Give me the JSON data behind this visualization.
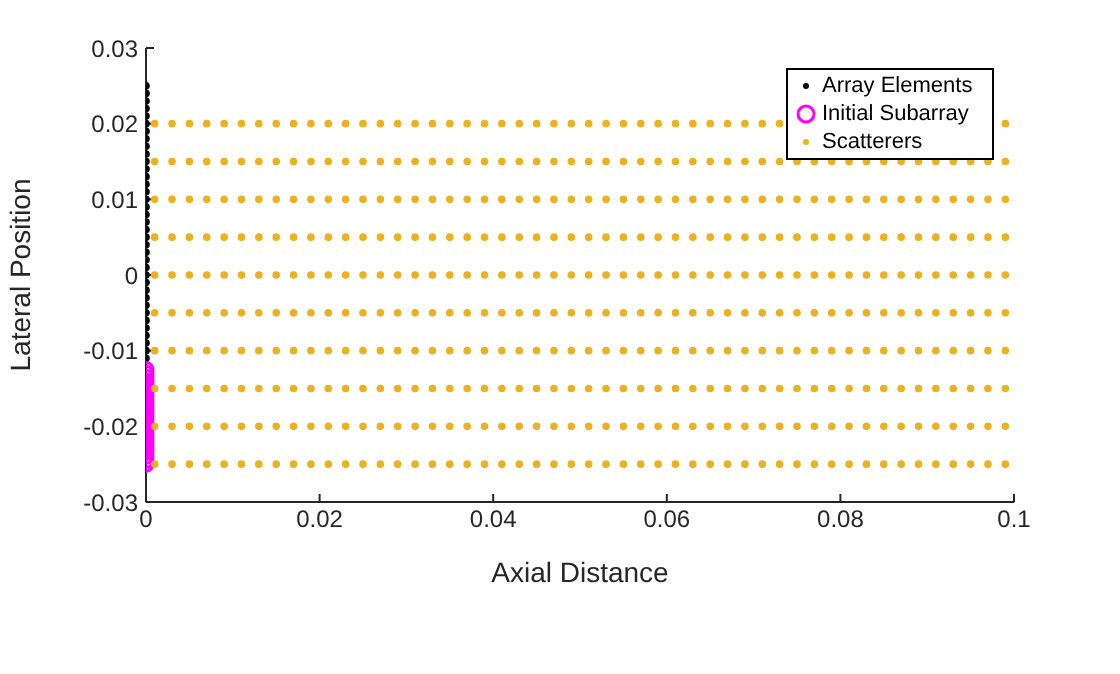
{
  "chart_data": {
    "type": "scatter",
    "xlabel": "Axial Distance",
    "ylabel": "Lateral Position",
    "xlim": [
      0,
      0.1
    ],
    "ylim": [
      -0.03,
      0.03
    ],
    "xticks": [
      0,
      0.02,
      0.04,
      0.06,
      0.08,
      0.1
    ],
    "yticks": [
      -0.03,
      -0.02,
      -0.01,
      0,
      0.01,
      0.02,
      0.03
    ],
    "grid": false,
    "legend": "top right",
    "marker": "circle",
    "series": [
      {
        "name": "Array Elements",
        "color": "#000000",
        "x": [
          0,
          0,
          0,
          0,
          0,
          0,
          0,
          0,
          0,
          0,
          0,
          0,
          0,
          0,
          0,
          0,
          0,
          0,
          0,
          0,
          0,
          0,
          0,
          0,
          0,
          0,
          0,
          0,
          0,
          0,
          0,
          0,
          0,
          0,
          0,
          0,
          0
        ],
        "values": [
          -0.011,
          -0.01,
          -0.009,
          -0.008,
          -0.007,
          -0.006,
          -0.005,
          -0.004,
          -0.003,
          -0.002,
          -0.001,
          0,
          0.001,
          0.002,
          0.003,
          0.004,
          0.005,
          0.006,
          0.007,
          0.008,
          0.009,
          0.01,
          0.011,
          0.012,
          0.013,
          0.014,
          0.015,
          0.016,
          0.017,
          0.018,
          0.019,
          0.02,
          0.021,
          0.022,
          0.023,
          0.024,
          0.025
        ]
      },
      {
        "name": "Initial Subarray",
        "color": "#ff00ff",
        "x": [
          0,
          0,
          0,
          0,
          0,
          0,
          0,
          0,
          0,
          0,
          0,
          0,
          0,
          0,
          0,
          0,
          0,
          0,
          0,
          0,
          0,
          0,
          0,
          0,
          0,
          0
        ],
        "values": [
          -0.025,
          -0.0245,
          -0.024,
          -0.0235,
          -0.023,
          -0.0225,
          -0.022,
          -0.0215,
          -0.021,
          -0.0205,
          -0.02,
          -0.0195,
          -0.019,
          -0.0185,
          -0.018,
          -0.0175,
          -0.017,
          -0.0165,
          -0.016,
          -0.0155,
          -0.015,
          -0.0145,
          -0.014,
          -0.0135,
          -0.013,
          -0.0125
        ]
      },
      {
        "name": "Scatterers",
        "color": "#edb120",
        "x": [
          0.001,
          0.003,
          0.005,
          0.007,
          0.009,
          0.011,
          0.013,
          0.015,
          0.017,
          0.019,
          0.021,
          0.023,
          0.025,
          0.027,
          0.029,
          0.031,
          0.033,
          0.035,
          0.037,
          0.039,
          0.041,
          0.043,
          0.045,
          0.047,
          0.049,
          0.051,
          0.053,
          0.055,
          0.057,
          0.059,
          0.061,
          0.063,
          0.065,
          0.067,
          0.069,
          0.071,
          0.073,
          0.075,
          0.077,
          0.079,
          0.081,
          0.083,
          0.085,
          0.087,
          0.089,
          0.091,
          0.093,
          0.095,
          0.097,
          0.099,
          0.001,
          0.003,
          0.005,
          0.007,
          0.009,
          0.011,
          0.013,
          0.015,
          0.017,
          0.019,
          0.021,
          0.023,
          0.025,
          0.027,
          0.029,
          0.031,
          0.033,
          0.035,
          0.037,
          0.039,
          0.041,
          0.043,
          0.045,
          0.047,
          0.049,
          0.051,
          0.053,
          0.055,
          0.057,
          0.059,
          0.061,
          0.063,
          0.065,
          0.067,
          0.069,
          0.071,
          0.073,
          0.075,
          0.077,
          0.079,
          0.081,
          0.083,
          0.085,
          0.087,
          0.089,
          0.091,
          0.093,
          0.095,
          0.097,
          0.099,
          0.001,
          0.003,
          0.005,
          0.007,
          0.009,
          0.011,
          0.013,
          0.015,
          0.017,
          0.019,
          0.021,
          0.023,
          0.025,
          0.027,
          0.029,
          0.031,
          0.033,
          0.035,
          0.037,
          0.039,
          0.041,
          0.043,
          0.045,
          0.047,
          0.049,
          0.051,
          0.053,
          0.055,
          0.057,
          0.059,
          0.061,
          0.063,
          0.065,
          0.067,
          0.069,
          0.071,
          0.073,
          0.075,
          0.077,
          0.079,
          0.081,
          0.083,
          0.085,
          0.087,
          0.089,
          0.091,
          0.093,
          0.095,
          0.097,
          0.099,
          0.001,
          0.003,
          0.005,
          0.007,
          0.009,
          0.011,
          0.013,
          0.015,
          0.017,
          0.019,
          0.021,
          0.023,
          0.025,
          0.027,
          0.029,
          0.031,
          0.033,
          0.035,
          0.037,
          0.039,
          0.041,
          0.043,
          0.045,
          0.047,
          0.049,
          0.051,
          0.053,
          0.055,
          0.057,
          0.059,
          0.061,
          0.063,
          0.065,
          0.067,
          0.069,
          0.071,
          0.073,
          0.075,
          0.077,
          0.079,
          0.081,
          0.083,
          0.085,
          0.087,
          0.089,
          0.091,
          0.093,
          0.095,
          0.097,
          0.099,
          0.001,
          0.003,
          0.005,
          0.007,
          0.009,
          0.011,
          0.013,
          0.015,
          0.017,
          0.019,
          0.021,
          0.023,
          0.025,
          0.027,
          0.029,
          0.031,
          0.033,
          0.035,
          0.037,
          0.039,
          0.041,
          0.043,
          0.045,
          0.047,
          0.049,
          0.051,
          0.053,
          0.055,
          0.057,
          0.059,
          0.061,
          0.063,
          0.065,
          0.067,
          0.069,
          0.071,
          0.073,
          0.075,
          0.077,
          0.079,
          0.081,
          0.083,
          0.085,
          0.087,
          0.089,
          0.091,
          0.093,
          0.095,
          0.097,
          0.099,
          0.001,
          0.003,
          0.005,
          0.007,
          0.009,
          0.011,
          0.013,
          0.015,
          0.017,
          0.019,
          0.021,
          0.023,
          0.025,
          0.027,
          0.029,
          0.031,
          0.033,
          0.035,
          0.037,
          0.039,
          0.041,
          0.043,
          0.045,
          0.047,
          0.049,
          0.051,
          0.053,
          0.055,
          0.057,
          0.059,
          0.061,
          0.063,
          0.065,
          0.067,
          0.069,
          0.071,
          0.073,
          0.075,
          0.077,
          0.079,
          0.081,
          0.083,
          0.085,
          0.087,
          0.089,
          0.091,
          0.093,
          0.095,
          0.097,
          0.099,
          0.001,
          0.003,
          0.005,
          0.007,
          0.009,
          0.011,
          0.013,
          0.015,
          0.017,
          0.019,
          0.021,
          0.023,
          0.025,
          0.027,
          0.029,
          0.031,
          0.033,
          0.035,
          0.037,
          0.039,
          0.041,
          0.043,
          0.045,
          0.047,
          0.049,
          0.051,
          0.053,
          0.055,
          0.057,
          0.059,
          0.061,
          0.063,
          0.065,
          0.067,
          0.069,
          0.071,
          0.073,
          0.075,
          0.077,
          0.079,
          0.081,
          0.083,
          0.085,
          0.087,
          0.089,
          0.091,
          0.093,
          0.095,
          0.097,
          0.099,
          0.001,
          0.003,
          0.005,
          0.007,
          0.009,
          0.011,
          0.013,
          0.015,
          0.017,
          0.019,
          0.021,
          0.023,
          0.025,
          0.027,
          0.029,
          0.031,
          0.033,
          0.035,
          0.037,
          0.039,
          0.041,
          0.043,
          0.045,
          0.047,
          0.049,
          0.051,
          0.053,
          0.055,
          0.057,
          0.059,
          0.061,
          0.063,
          0.065,
          0.067,
          0.069,
          0.071,
          0.073,
          0.075,
          0.077,
          0.079,
          0.081,
          0.083,
          0.085,
          0.087,
          0.089,
          0.091,
          0.093,
          0.095,
          0.097,
          0.099,
          0.001,
          0.003,
          0.005,
          0.007,
          0.009,
          0.011,
          0.013,
          0.015,
          0.017,
          0.019,
          0.021,
          0.023,
          0.025,
          0.027,
          0.029,
          0.031,
          0.033,
          0.035,
          0.037,
          0.039,
          0.041,
          0.043,
          0.045,
          0.047,
          0.049,
          0.051,
          0.053,
          0.055,
          0.057,
          0.059,
          0.061,
          0.063,
          0.065,
          0.067,
          0.069,
          0.071,
          0.073,
          0.075,
          0.077,
          0.079,
          0.081,
          0.083,
          0.085,
          0.087,
          0.089,
          0.091,
          0.093,
          0.095,
          0.097,
          0.099,
          0.001,
          0.003,
          0.005,
          0.007,
          0.009,
          0.011,
          0.013,
          0.015,
          0.017,
          0.019,
          0.021,
          0.023,
          0.025,
          0.027,
          0.029,
          0.031,
          0.033,
          0.035,
          0.037,
          0.039,
          0.041,
          0.043,
          0.045,
          0.047,
          0.049,
          0.051,
          0.053,
          0.055,
          0.057,
          0.059,
          0.061,
          0.063,
          0.065,
          0.067,
          0.069,
          0.071,
          0.073,
          0.075,
          0.077,
          0.079,
          0.081,
          0.083,
          0.085,
          0.087,
          0.089,
          0.091,
          0.093,
          0.095,
          0.097,
          0.099
        ],
        "values": [
          0.02,
          0.02,
          0.02,
          0.02,
          0.02,
          0.02,
          0.02,
          0.02,
          0.02,
          0.02,
          0.02,
          0.02,
          0.02,
          0.02,
          0.02,
          0.02,
          0.02,
          0.02,
          0.02,
          0.02,
          0.02,
          0.02,
          0.02,
          0.02,
          0.02,
          0.02,
          0.02,
          0.02,
          0.02,
          0.02,
          0.02,
          0.02,
          0.02,
          0.02,
          0.02,
          0.02,
          0.02,
          null,
          null,
          null,
          null,
          null,
          null,
          null,
          null,
          null,
          null,
          null,
          null,
          0.02,
          0.015,
          0.015,
          0.015,
          0.015,
          0.015,
          0.015,
          0.015,
          0.015,
          0.015,
          0.015,
          0.015,
          0.015,
          0.015,
          0.015,
          0.015,
          0.015,
          0.015,
          0.015,
          0.015,
          0.015,
          0.015,
          0.015,
          0.015,
          0.015,
          0.015,
          0.015,
          0.015,
          0.015,
          0.015,
          0.015,
          0.015,
          0.015,
          0.015,
          0.015,
          0.015,
          0.015,
          0.015,
          0.015,
          0.015,
          0.015,
          0.015,
          0.015,
          0.015,
          0.015,
          0.015,
          0.015,
          0.015,
          0.015,
          0.015,
          0.015,
          0.01,
          0.01,
          0.01,
          0.01,
          0.01,
          0.01,
          0.01,
          0.01,
          0.01,
          0.01,
          0.01,
          0.01,
          0.01,
          0.01,
          0.01,
          0.01,
          0.01,
          0.01,
          0.01,
          0.01,
          0.01,
          0.01,
          0.01,
          0.01,
          0.01,
          0.01,
          0.01,
          0.01,
          0.01,
          0.01,
          0.01,
          0.01,
          0.01,
          0.01,
          0.01,
          0.01,
          0.01,
          0.01,
          0.01,
          0.01,
          0.01,
          0.01,
          0.01,
          0.01,
          0.01,
          0.01,
          0.01,
          0.01,
          0.01,
          0.01,
          0.005,
          0.005,
          0.005,
          0.005,
          0.005,
          0.005,
          0.005,
          0.005,
          0.005,
          0.005,
          0.005,
          0.005,
          0.005,
          0.005,
          0.005,
          0.005,
          0.005,
          0.005,
          0.005,
          0.005,
          0.005,
          0.005,
          0.005,
          0.005,
          0.005,
          0.005,
          0.005,
          0.005,
          0.005,
          0.005,
          0.005,
          0.005,
          0.005,
          0.005,
          0.005,
          0.005,
          0.005,
          0.005,
          0.005,
          0.005,
          0.005,
          0.005,
          0.005,
          0.005,
          0.005,
          0.005,
          0.005,
          0.005,
          0.005,
          0.005,
          0,
          0,
          0,
          0,
          0,
          0,
          0,
          0,
          0,
          0,
          0,
          0,
          0,
          0,
          0,
          0,
          0,
          0,
          0,
          0,
          0,
          0,
          0,
          0,
          0,
          0,
          0,
          0,
          0,
          0,
          0,
          0,
          0,
          0,
          0,
          0,
          0,
          0,
          0,
          0,
          0,
          0,
          0,
          0,
          0,
          0,
          0,
          0,
          0,
          0,
          -0.005,
          -0.005,
          -0.005,
          -0.005,
          -0.005,
          -0.005,
          -0.005,
          -0.005,
          -0.005,
          -0.005,
          -0.005,
          -0.005,
          -0.005,
          -0.005,
          -0.005,
          -0.005,
          -0.005,
          -0.005,
          -0.005,
          -0.005,
          -0.005,
          -0.005,
          -0.005,
          -0.005,
          -0.005,
          -0.005,
          -0.005,
          -0.005,
          -0.005,
          -0.005,
          -0.005,
          -0.005,
          -0.005,
          -0.005,
          -0.005,
          -0.005,
          -0.005,
          -0.005,
          -0.005,
          -0.005,
          -0.005,
          -0.005,
          -0.005,
          -0.005,
          -0.005,
          -0.005,
          -0.005,
          -0.005,
          -0.005,
          -0.005,
          -0.01,
          -0.01,
          -0.01,
          -0.01,
          -0.01,
          -0.01,
          -0.01,
          -0.01,
          -0.01,
          -0.01,
          -0.01,
          -0.01,
          -0.01,
          -0.01,
          -0.01,
          -0.01,
          -0.01,
          -0.01,
          -0.01,
          -0.01,
          -0.01,
          -0.01,
          -0.01,
          -0.01,
          -0.01,
          -0.01,
          -0.01,
          -0.01,
          -0.01,
          -0.01,
          -0.01,
          -0.01,
          -0.01,
          -0.01,
          -0.01,
          -0.01,
          -0.01,
          -0.01,
          -0.01,
          -0.01,
          -0.01,
          -0.01,
          -0.01,
          -0.01,
          -0.01,
          -0.01,
          -0.01,
          -0.01,
          -0.01,
          -0.01,
          -0.015,
          -0.015,
          -0.015,
          -0.015,
          -0.015,
          -0.015,
          -0.015,
          -0.015,
          -0.015,
          -0.015,
          -0.015,
          -0.015,
          -0.015,
          -0.015,
          -0.015,
          -0.015,
          -0.015,
          -0.015,
          -0.015,
          -0.015,
          -0.015,
          -0.015,
          -0.015,
          -0.015,
          -0.015,
          -0.015,
          -0.015,
          -0.015,
          -0.015,
          -0.015,
          -0.015,
          -0.015,
          -0.015,
          -0.015,
          -0.015,
          -0.015,
          -0.015,
          -0.015,
          -0.015,
          -0.015,
          -0.015,
          -0.015,
          -0.015,
          -0.015,
          -0.015,
          -0.015,
          -0.015,
          -0.015,
          -0.015,
          -0.015,
          -0.02,
          -0.02,
          -0.02,
          -0.02,
          -0.02,
          -0.02,
          -0.02,
          -0.02,
          -0.02,
          -0.02,
          -0.02,
          -0.02,
          -0.02,
          -0.02,
          -0.02,
          -0.02,
          -0.02,
          -0.02,
          -0.02,
          -0.02,
          -0.02,
          -0.02,
          -0.02,
          -0.02,
          -0.02,
          -0.02,
          -0.02,
          -0.02,
          -0.02,
          -0.02,
          -0.02,
          -0.02,
          -0.02,
          -0.02,
          -0.02,
          -0.02,
          -0.02,
          -0.02,
          -0.02,
          -0.02,
          -0.02,
          -0.02,
          -0.02,
          -0.02,
          -0.02,
          -0.02,
          -0.02,
          -0.02,
          -0.02,
          -0.02,
          -0.025,
          -0.025,
          -0.025,
          -0.025,
          -0.025,
          -0.025,
          -0.025,
          -0.025,
          -0.025,
          -0.025,
          -0.025,
          -0.025,
          -0.025,
          -0.025,
          -0.025,
          -0.025,
          -0.025,
          -0.025,
          -0.025,
          -0.025,
          -0.025,
          -0.025,
          -0.025,
          -0.025,
          -0.025,
          -0.025,
          -0.025,
          -0.025,
          -0.025,
          -0.025,
          -0.025,
          -0.025,
          -0.025,
          -0.025,
          -0.025,
          -0.025,
          -0.025,
          -0.025,
          -0.025,
          -0.025,
          -0.025,
          -0.025,
          -0.025,
          -0.025,
          -0.025,
          -0.025,
          -0.025,
          -0.025,
          -0.025,
          -0.025
        ]
      }
    ]
  }
}
